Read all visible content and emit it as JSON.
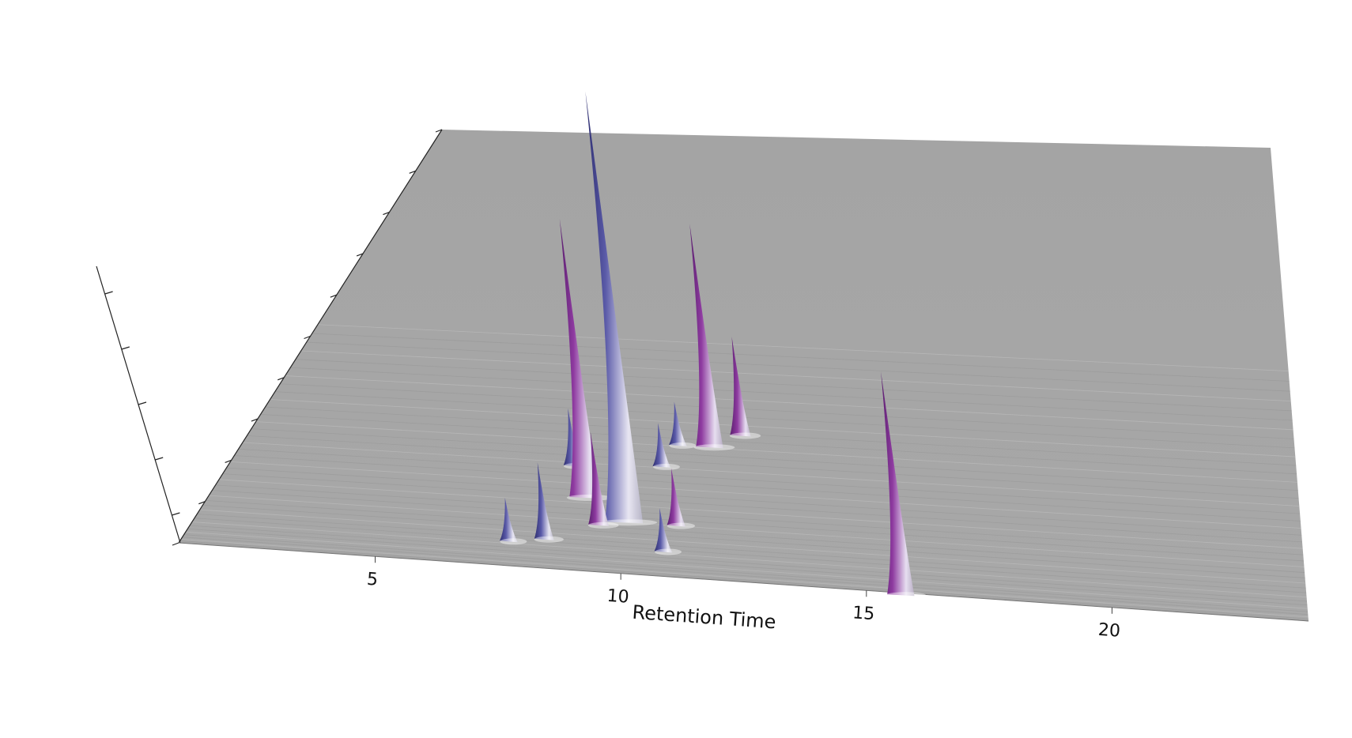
{
  "chart_data": {
    "type": "surface",
    "title": "",
    "xlabel": "Retention Time",
    "ylabel": "",
    "zlabel": "",
    "x_ticks": [
      5,
      10,
      15,
      20
    ],
    "xlim": [
      1.0,
      24.0
    ],
    "grid": false,
    "legend": "none",
    "colors": {
      "floor": "#a6a6a6",
      "peak_purple": "#7a2a8a",
      "peak_blue": "#4a4a9a",
      "peak_light": "#efe9f2"
    },
    "peaks": [
      {
        "rt": 7.5,
        "depth": 0.06,
        "height": 0.15,
        "color": "blue"
      },
      {
        "rt": 8.2,
        "depth": 0.07,
        "height": 0.27,
        "color": "blue"
      },
      {
        "rt": 8.2,
        "depth": 0.24,
        "height": 0.2,
        "color": "blue"
      },
      {
        "rt": 8.7,
        "depth": 0.17,
        "height": 1.0,
        "color": "purple"
      },
      {
        "rt": 9.2,
        "depth": 0.11,
        "height": 0.33,
        "color": "purple"
      },
      {
        "rt": 9.7,
        "depth": 0.12,
        "height": 1.55,
        "color": "blue"
      },
      {
        "rt": 10.1,
        "depth": 0.25,
        "height": 0.15,
        "color": "blue"
      },
      {
        "rt": 10.3,
        "depth": 0.3,
        "height": 0.15,
        "color": "blue"
      },
      {
        "rt": 10.7,
        "depth": 0.06,
        "height": 0.15,
        "color": "blue"
      },
      {
        "rt": 10.8,
        "depth": 0.12,
        "height": 0.2,
        "color": "purple"
      },
      {
        "rt": 11.0,
        "depth": 0.3,
        "height": 0.8,
        "color": "purple"
      },
      {
        "rt": 11.6,
        "depth": 0.33,
        "height": 0.35,
        "color": "purple"
      },
      {
        "rt": 15.7,
        "depth": 0.0,
        "height": 0.8,
        "color": "purple"
      }
    ]
  }
}
